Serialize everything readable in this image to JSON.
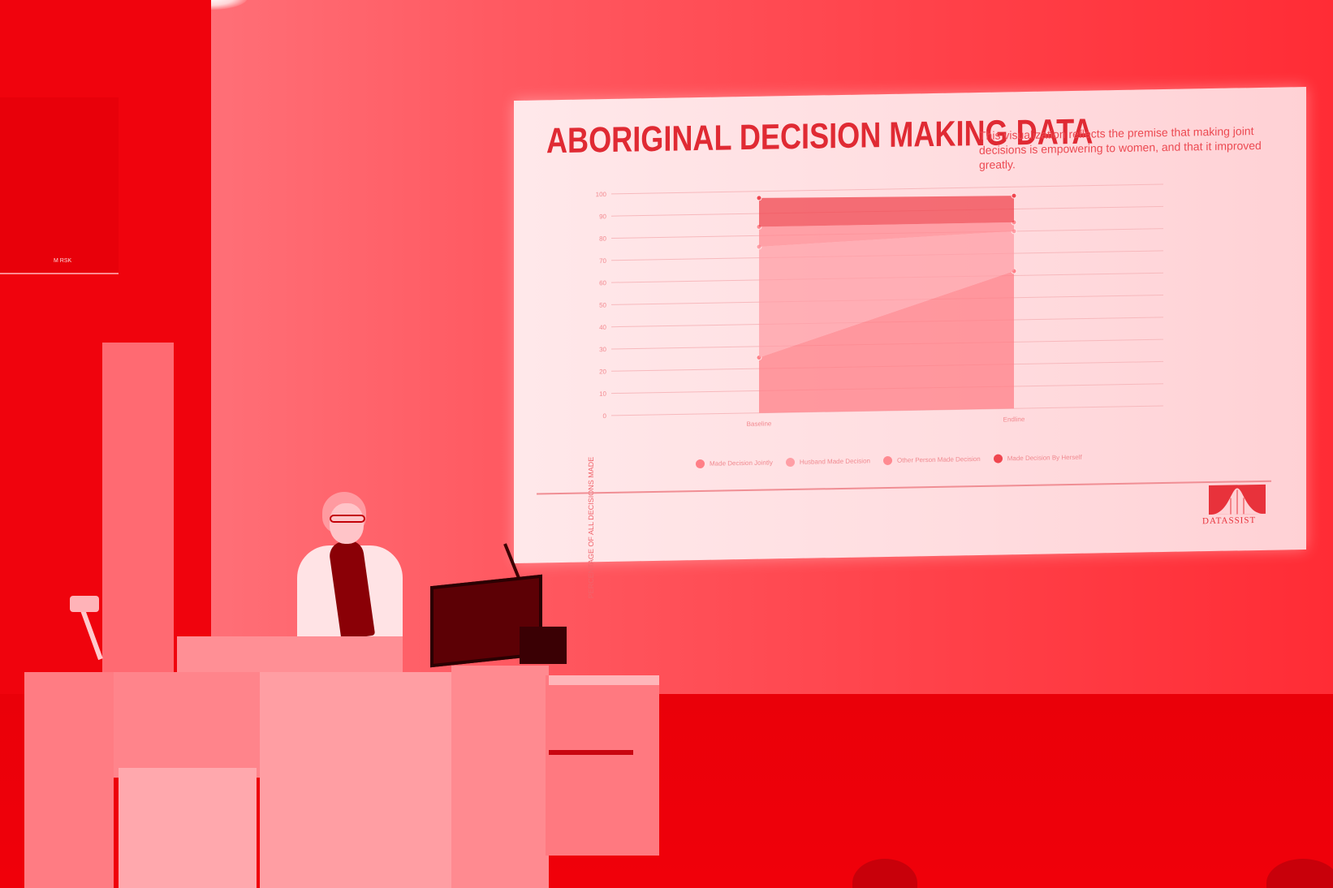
{
  "scene": {
    "description_colors": {
      "tint": "#f2020c",
      "slide_title_color": "#e02a33"
    },
    "speaker_label": "M RSK"
  },
  "slide": {
    "title": "ABORIGINAL DECISION MAKING DATA",
    "description": "This visualization reflects the premise that making joint decisions is empowering to women, and that it improved greatly.",
    "logo_text": "DATASSIST",
    "logo_icon": "bell-curve-icon"
  },
  "chart_data": {
    "type": "area",
    "title": "",
    "xlabel": "",
    "ylabel": "PERCENTAGE OF ALL DECISIONS MADE",
    "categories": [
      "Baseline",
      "Endline"
    ],
    "ylim": [
      0,
      100
    ],
    "yticks": [
      "0",
      "10",
      "20",
      "30",
      "40",
      "50",
      "60",
      "70",
      "80",
      "90",
      "100"
    ],
    "stacked": true,
    "grid": true,
    "legend_position": "bottom",
    "series": [
      {
        "name": "Made Decision Jointly",
        "values": [
          25,
          62
        ],
        "color": "#ff7f87"
      },
      {
        "name": "Husband Made Decision",
        "values": [
          50,
          18
        ],
        "color": "#ff9ea5"
      },
      {
        "name": "Other Person Made Decision",
        "values": [
          9,
          4
        ],
        "color": "#ff8a91"
      },
      {
        "name": "Made Decision By Herself",
        "values": [
          13,
          12
        ],
        "color": "#f0464f"
      }
    ]
  }
}
